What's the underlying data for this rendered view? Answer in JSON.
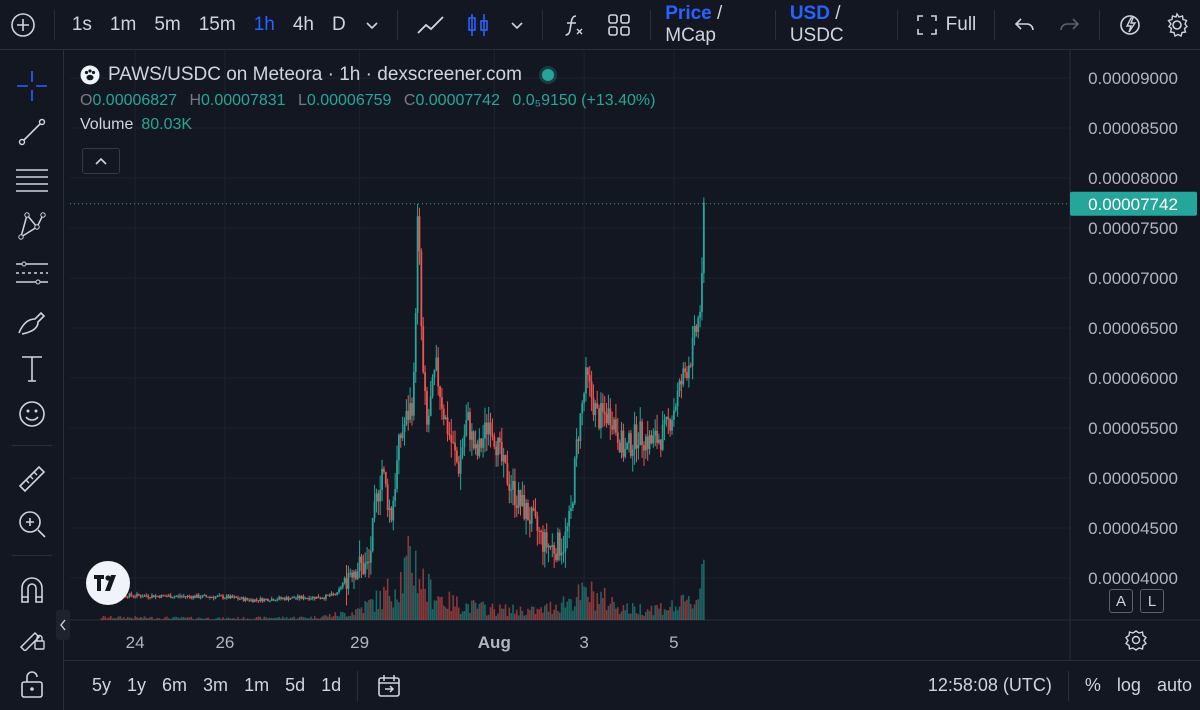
{
  "toolbar": {
    "intervals": [
      "1s",
      "1m",
      "5m",
      "15m",
      "1h",
      "4h",
      "D"
    ],
    "active_interval": "1h",
    "price_label": "Price",
    "mcap_label": "MCap",
    "usd_label": "USD",
    "usdc_label": "USDC",
    "full_label": "Full",
    "accent": "#2962ff"
  },
  "legend": {
    "title": "PAWS/USDC on Meteora · 1h · dexscreener.com",
    "o_label": "O",
    "o_value": "0.00006827",
    "h_label": "H",
    "h_value": "0.00007831",
    "l_label": "L",
    "l_value": "0.00006759",
    "c_label": "C",
    "c_value": "0.00007742",
    "change_value": "0.0₅9150 (+13.40%)",
    "volume_label": "Volume",
    "volume_value": "80.03K"
  },
  "bottom": {
    "ranges": [
      "5y",
      "1y",
      "6m",
      "3m",
      "1m",
      "5d",
      "1d"
    ],
    "time": "12:58:08 (UTC)",
    "pct_label": "%",
    "log_label": "log",
    "auto_label": "auto"
  },
  "scale_buttons": {
    "a": "A",
    "l": "L"
  },
  "chart_data": {
    "type": "candlestick",
    "up_color": "#26a69a",
    "down_color": "#ef5350",
    "last_price": "0.00007742",
    "last_price_value": 7.742e-05,
    "ylim": [
      3.58e-05,
      9.28e-05
    ],
    "y_ticks": [
      "0.00009000",
      "0.00008500",
      "0.00008000",
      "0.00007500",
      "0.00007000",
      "0.00006500",
      "0.00006000",
      "0.00005500",
      "0.00005000",
      "0.00004500",
      "0.00004000"
    ],
    "y_tick_values": [
      9e-05,
      8.5e-05,
      8e-05,
      7.5e-05,
      7e-05,
      6.5e-05,
      6e-05,
      5.5e-05,
      5e-05,
      4.5e-05,
      4e-05
    ],
    "x_ticks": [
      "24",
      "26",
      "29",
      "Aug",
      "3",
      "5"
    ],
    "x_tick_days": [
      24,
      26,
      29,
      32,
      34,
      36
    ],
    "series_points": [
      [
        23.25,
        3.9e-05
      ],
      [
        23.4,
        3.83e-05
      ],
      [
        24.5,
        3.82e-05
      ],
      [
        26.0,
        3.81e-05
      ],
      [
        26.6,
        3.78e-05
      ],
      [
        27.5,
        3.8e-05
      ],
      [
        28.2,
        3.81e-05
      ],
      [
        28.5,
        3.84e-05
      ],
      [
        28.8,
        4.1e-05
      ],
      [
        29.0,
        4.12e-05
      ],
      [
        29.2,
        4.1e-05
      ],
      [
        29.35,
        4.7e-05
      ],
      [
        29.5,
        5.1e-05
      ],
      [
        29.7,
        4.6e-05
      ],
      [
        29.9,
        5.4e-05
      ],
      [
        30.05,
        5.6e-05
      ],
      [
        30.2,
        5.8e-05
      ],
      [
        30.3,
        7.7e-05
      ],
      [
        30.4,
        6.1e-05
      ],
      [
        30.5,
        5.5e-05
      ],
      [
        30.7,
        6.1e-05
      ],
      [
        30.9,
        5.6e-05
      ],
      [
        31.2,
        5.1e-05
      ],
      [
        31.4,
        5.6e-05
      ],
      [
        31.6,
        5.2e-05
      ],
      [
        31.9,
        5.6e-05
      ],
      [
        32.2,
        5.1e-05
      ],
      [
        32.5,
        4.8e-05
      ],
      [
        32.8,
        4.6e-05
      ],
      [
        33.1,
        4.35e-05
      ],
      [
        33.3,
        4.3e-05
      ],
      [
        33.55,
        4.35e-05
      ],
      [
        33.7,
        4.6e-05
      ],
      [
        33.85,
        5.4e-05
      ],
      [
        34.05,
        6e-05
      ],
      [
        34.3,
        5.6e-05
      ],
      [
        34.6,
        5.65e-05
      ],
      [
        34.9,
        5.25e-05
      ],
      [
        35.2,
        5.45e-05
      ],
      [
        35.5,
        5.35e-05
      ],
      [
        35.8,
        5.45e-05
      ],
      [
        36.0,
        5.7e-05
      ],
      [
        36.2,
        6e-05
      ],
      [
        36.4,
        6.25e-05
      ],
      [
        36.55,
        6.6e-05
      ],
      [
        36.62,
        6.82e-05
      ],
      [
        36.67,
        7.74e-05
      ]
    ],
    "volume_points": [
      [
        23.25,
        0.03
      ],
      [
        26.0,
        0.02
      ],
      [
        28.0,
        0.03
      ],
      [
        28.8,
        0.08
      ],
      [
        29.5,
        0.25
      ],
      [
        29.9,
        0.45
      ],
      [
        30.2,
        0.7
      ],
      [
        30.3,
        0.55
      ],
      [
        30.5,
        0.35
      ],
      [
        31.0,
        0.2
      ],
      [
        31.5,
        0.15
      ],
      [
        32.0,
        0.12
      ],
      [
        33.0,
        0.1
      ],
      [
        33.8,
        0.25
      ],
      [
        34.1,
        0.3
      ],
      [
        35.0,
        0.12
      ],
      [
        36.0,
        0.15
      ],
      [
        36.5,
        0.22
      ],
      [
        36.67,
        0.7
      ]
    ]
  }
}
